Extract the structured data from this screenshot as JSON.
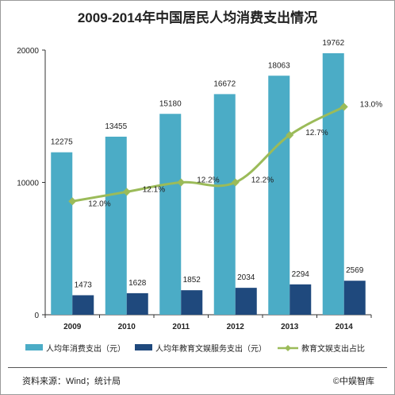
{
  "chart_data": {
    "type": "bar",
    "title": "2009-2014年中国居民人均消费支出情况",
    "categories": [
      "2009",
      "2010",
      "2011",
      "2012",
      "2013",
      "2014"
    ],
    "series": [
      {
        "name": "人均年消费支出（元）",
        "type": "bar",
        "axis": "left",
        "color": "#4bacc6",
        "values": [
          12275,
          13455,
          15180,
          16672,
          18063,
          19762
        ]
      },
      {
        "name": "人均年教育文娱服务支出（元）",
        "type": "bar",
        "axis": "left",
        "color": "#1f497d",
        "values": [
          1473,
          1628,
          1852,
          2034,
          2294,
          2569
        ]
      },
      {
        "name": "教育文娱支出占比",
        "type": "line",
        "axis": "secondary",
        "color": "#9bbb59",
        "values": [
          12.0,
          12.1,
          12.2,
          12.2,
          12.7,
          13.0
        ],
        "labels": [
          "12.0%",
          "12.1%",
          "12.2%",
          "12.2%",
          "12.7%",
          "13.0%"
        ]
      }
    ],
    "yticks": [
      "0",
      "10000",
      "20000"
    ],
    "ylim": [
      0,
      20000
    ],
    "secondary_ylim": [
      10.8,
      13.6
    ],
    "legend": "bottom",
    "grid": false
  },
  "footer": {
    "source": "资料来源：Wind；统计局",
    "brand": "©中娱智库"
  }
}
